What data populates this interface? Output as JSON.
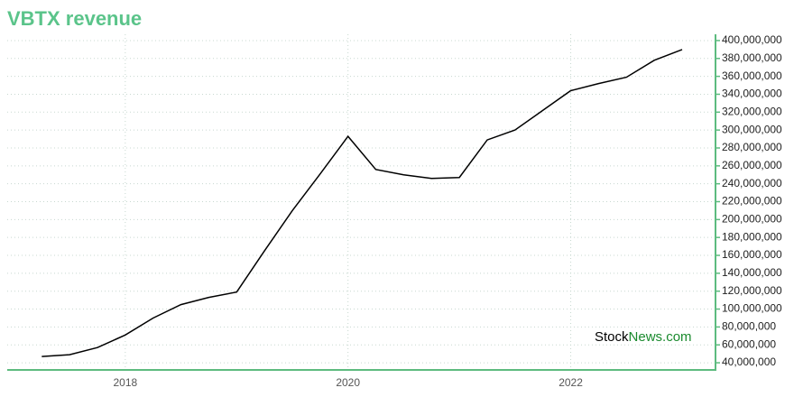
{
  "chart_data": {
    "type": "line",
    "title": "VBTX revenue",
    "watermark": [
      "Stock",
      "News.com"
    ],
    "x": [
      2017.25,
      2017.5,
      2017.75,
      2018.0,
      2018.25,
      2018.5,
      2018.75,
      2019.0,
      2019.25,
      2019.5,
      2019.75,
      2020.0,
      2020.25,
      2020.5,
      2020.75,
      2021.0,
      2021.25,
      2021.5,
      2021.75,
      2022.0,
      2022.25,
      2022.5,
      2022.75,
      2023.0
    ],
    "series": [
      {
        "name": "VBTX revenue",
        "color": "#000000",
        "values": [
          47000000,
          49000000,
          57000000,
          71000000,
          90000000,
          105000000,
          113000000,
          119000000,
          165000000,
          210000000,
          251000000,
          293000000,
          256000000,
          250000000,
          246000000,
          247000000,
          289000000,
          300000000,
          322000000,
          344000000,
          352000000,
          359000000,
          378000000,
          390000000
        ]
      }
    ],
    "xlim": [
      2016.94,
      2023.3
    ],
    "xticks": [
      2018,
      2020,
      2022
    ],
    "ylim": [
      32000000,
      407000000
    ],
    "yticks": [
      {
        "value": 40000000,
        "label": "40,000,000"
      },
      {
        "value": 60000000,
        "label": "60,000,000"
      },
      {
        "value": 80000000,
        "label": "80,000,000"
      },
      {
        "value": 100000000,
        "label": "100,000,000"
      },
      {
        "value": 120000000,
        "label": "120,000,000"
      },
      {
        "value": 140000000,
        "label": "140,000,000"
      },
      {
        "value": 160000000,
        "label": "160,000,000"
      },
      {
        "value": 180000000,
        "label": "180,000,000"
      },
      {
        "value": 200000000,
        "label": "200,000,000"
      },
      {
        "value": 220000000,
        "label": "220,000,000"
      },
      {
        "value": 240000000,
        "label": "240,000,000"
      },
      {
        "value": 260000000,
        "label": "260,000,000"
      },
      {
        "value": 280000000,
        "label": "280,000,000"
      },
      {
        "value": 300000000,
        "label": "300,000,000"
      },
      {
        "value": 320000000,
        "label": "320,000,000"
      },
      {
        "value": 340000000,
        "label": "340,000,000"
      },
      {
        "value": 360000000,
        "label": "360,000,000"
      },
      {
        "value": 380000000,
        "label": "380,000,000"
      },
      {
        "value": 400000000,
        "label": "400,000,000"
      }
    ],
    "grid": true,
    "axis_color": "#5dbb7f",
    "title_color": "#5bc48a"
  }
}
